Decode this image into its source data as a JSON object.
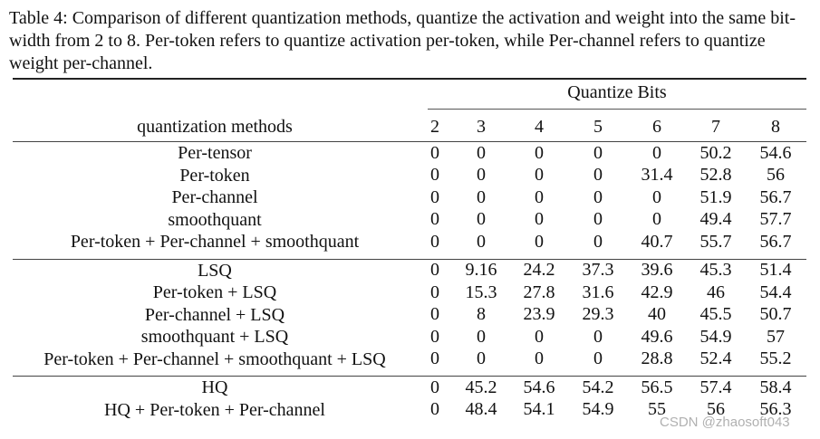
{
  "caption": "Table 4: Comparison of different quantization methods, quantize the activation and weight into the same bit-width from 2 to 8. Per-token refers to quantize activation per-token, while Per-channel refers to quantize weight per-channel.",
  "table": {
    "method_header": "quantization methods",
    "group_header": "Quantize Bits",
    "bits": [
      "2",
      "3",
      "4",
      "5",
      "6",
      "7",
      "8"
    ],
    "groups": [
      {
        "rows": [
          {
            "method": "Per-tensor",
            "values": [
              "0",
              "0",
              "0",
              "0",
              "0",
              "50.2",
              "54.6"
            ]
          },
          {
            "method": "Per-token",
            "values": [
              "0",
              "0",
              "0",
              "0",
              "31.4",
              "52.8",
              "56"
            ]
          },
          {
            "method": "Per-channel",
            "values": [
              "0",
              "0",
              "0",
              "0",
              "0",
              "51.9",
              "56.7"
            ]
          },
          {
            "method": "smoothquant",
            "values": [
              "0",
              "0",
              "0",
              "0",
              "0",
              "49.4",
              "57.7"
            ]
          },
          {
            "method": "Per-token + Per-channel + smoothquant",
            "values": [
              "0",
              "0",
              "0",
              "0",
              "40.7",
              "55.7",
              "56.7"
            ]
          }
        ]
      },
      {
        "rows": [
          {
            "method": "LSQ",
            "values": [
              "0",
              "9.16",
              "24.2",
              "37.3",
              "39.6",
              "45.3",
              "51.4"
            ]
          },
          {
            "method": "Per-token + LSQ",
            "values": [
              "0",
              "15.3",
              "27.8",
              "31.6",
              "42.9",
              "46",
              "54.4"
            ]
          },
          {
            "method": "Per-channel + LSQ",
            "values": [
              "0",
              "8",
              "23.9",
              "29.3",
              "40",
              "45.5",
              "50.7"
            ]
          },
          {
            "method": "smoothquant + LSQ",
            "values": [
              "0",
              "0",
              "0",
              "0",
              "49.6",
              "54.9",
              "57"
            ]
          },
          {
            "method": "Per-token + Per-channel + smoothquant + LSQ",
            "values": [
              "0",
              "0",
              "0",
              "0",
              "28.8",
              "52.4",
              "55.2"
            ]
          }
        ]
      },
      {
        "rows": [
          {
            "method": "HQ",
            "values": [
              "0",
              "45.2",
              "54.6",
              "54.2",
              "56.5",
              "57.4",
              "58.4"
            ]
          },
          {
            "method": "HQ + Per-token + Per-channel",
            "values": [
              "0",
              "48.4",
              "54.1",
              "54.9",
              "55",
              "56",
              "56.3"
            ]
          }
        ]
      }
    ]
  },
  "watermark": "CSDN @zhaosoft043"
}
